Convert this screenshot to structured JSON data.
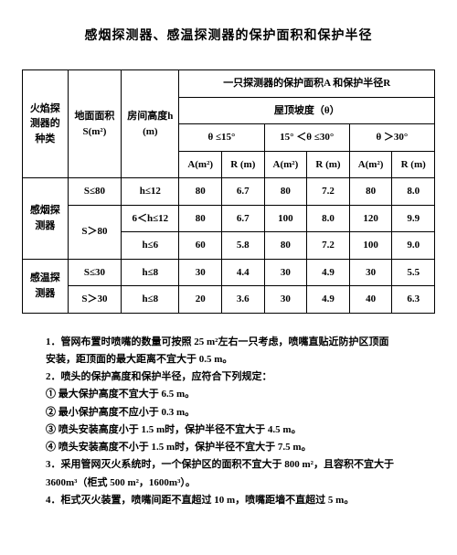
{
  "title": "感烟探测器、感温探测器的保护面积和保护半径",
  "header": {
    "type": "火焰探测器的种类",
    "area": "地面面积S(m²)",
    "height": "房间高度h (m)",
    "main": "一只探测器的保护面积A 和保护半径R",
    "slope": "屋顶坡度（θ）",
    "g1": "θ ≤15°",
    "g2": "15° ＜θ ≤30°",
    "g3": "θ ＞30°",
    "A": "A(m²)",
    "R": "R (m)"
  },
  "rows": [
    {
      "type": "感烟探测器",
      "S": "S≤80",
      "h": "h≤12",
      "A1": "80",
      "R1": "6.7",
      "A2": "80",
      "R2": "7.2",
      "A3": "80",
      "R3": "8.0"
    },
    {
      "S": "S＞80",
      "h": "6＜h≤12",
      "A1": "80",
      "R1": "6.7",
      "A2": "100",
      "R2": "8.0",
      "A3": "120",
      "R3": "9.9"
    },
    {
      "h": "h≤6",
      "A1": "60",
      "R1": "5.8",
      "A2": "80",
      "R2": "7.2",
      "A3": "100",
      "R3": "9.0"
    },
    {
      "type": "感温探测器",
      "S": "S≤30",
      "h": "h≤8",
      "A1": "30",
      "R1": "4.4",
      "A2": "30",
      "R2": "4.9",
      "A3": "30",
      "R3": "5.5"
    },
    {
      "S": "S＞30",
      "h": "h≤8",
      "A1": "20",
      "R1": "3.6",
      "A2": "30",
      "R2": "4.9",
      "A3": "40",
      "R3": "6.3"
    }
  ],
  "notes": {
    "n1a": "1．管网布置时喷嘴的数量可按照 25 m²左右一只考虑，喷嘴直贴近防护区顶面",
    "n1b": "安装，距顶面的最大距离不宜大于 0.5 m。",
    "n2": "2．喷头的保护高度和保护半径，应符合下列规定：",
    "n2a": "① 最大保护高度不宜大于 6.5 m。",
    "n2b": "② 最小保护高度不应小于 0.3 m。",
    "n2c": "③ 喷头安装高度小于 1.5 m时，保护半径不宜大于 4.5 m。",
    "n2d": "④ 喷头安装高度不小于 1.5 m时，保护半径不宜大于 7.5 m。",
    "n3a": "3．采用管网灭火系统时，一个保护区的面积不宜大于 800 m²，且容积不宜大于",
    "n3b": "3600m³（柜式 500 m²，1600m³）。",
    "n4": "4．柜式灭火装置，喷嘴间距不直超过 10 m，喷嘴距墙不直超过 5 m。"
  }
}
